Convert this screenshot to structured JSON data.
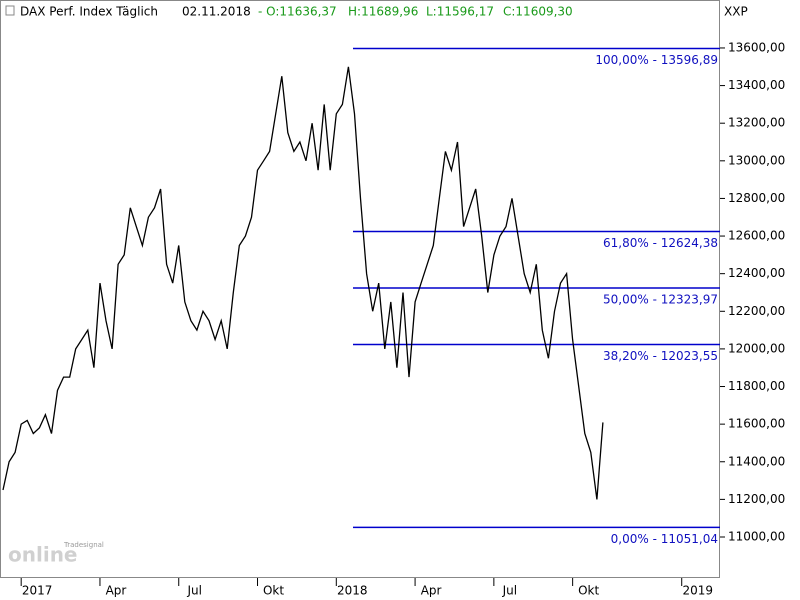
{
  "chart_data": {
    "type": "line",
    "title": "DAX Perf. Index Täglich",
    "date": "02.11.2018",
    "ohlc": [
      "- O:11636,37",
      "H:11689,96",
      "L:11596,17",
      "C:11609,30"
    ],
    "axis_label": "XXP",
    "logo": {
      "brand": "Tradesignal",
      "name": "online"
    },
    "categories": [
      null,
      null,
      null,
      "2017",
      null,
      null,
      null,
      null,
      null,
      null,
      null,
      null,
      null,
      null,
      null,
      null,
      "Apr",
      null,
      null,
      null,
      null,
      null,
      null,
      null,
      null,
      null,
      null,
      null,
      null,
      "Jul",
      null,
      null,
      null,
      null,
      null,
      null,
      null,
      null,
      null,
      null,
      null,
      null,
      "Okt",
      null,
      null,
      null,
      null,
      null,
      null,
      null,
      null,
      null,
      null,
      null,
      null,
      "2018",
      null,
      null,
      null,
      null,
      null,
      null,
      null,
      null,
      null,
      null,
      null,
      null,
      "Apr",
      null,
      null,
      null,
      null,
      null,
      null,
      null,
      null,
      null,
      null,
      null,
      null,
      "Jul",
      null,
      null,
      null,
      null,
      null,
      null,
      null,
      null,
      null,
      null,
      null,
      null,
      "Okt",
      null,
      null,
      null,
      null,
      null,
      null,
      null,
      null,
      null,
      null,
      null,
      null,
      null,
      null,
      null,
      null,
      null,
      "2019"
    ],
    "series": [
      {
        "name": "DAX",
        "color": "#000000",
        "values": [
          11250,
          11400,
          11450,
          11600,
          11620,
          11550,
          11580,
          11650,
          11550,
          11780,
          11850,
          11850,
          12000,
          12050,
          12100,
          11900,
          12350,
          12150,
          12000,
          12450,
          12500,
          12750,
          12650,
          12550,
          12700,
          12750,
          12850,
          12450,
          12350,
          12550,
          12250,
          12150,
          12100,
          12200,
          12150,
          12050,
          12150,
          12000,
          12300,
          12550,
          12600,
          12700,
          12950,
          13000,
          13050,
          13250,
          13450,
          13150,
          13050,
          13100,
          13000,
          13200,
          12950,
          13300,
          12950,
          13250,
          13300,
          13500,
          13250,
          12800,
          12400,
          12200,
          12350,
          12000,
          12250,
          11900,
          12300,
          11850,
          12250,
          12350,
          12450,
          12550,
          12800,
          13050,
          12950,
          13100,
          12650,
          12750,
          12850,
          12600,
          12300,
          12500,
          12600,
          12650,
          12800,
          12600,
          12400,
          12300,
          12450,
          12100,
          11950,
          12200,
          12350,
          12400,
          12050,
          11800,
          11550,
          11450,
          11200,
          11609.3,
          null,
          null,
          null,
          null,
          null,
          null,
          null,
          null,
          null,
          null,
          null,
          null,
          null
        ]
      }
    ],
    "ylim": [
      10782,
      13855
    ],
    "yticks": [
      {
        "value": 11000,
        "label": "11000,00"
      },
      {
        "value": 11200,
        "label": "11200,00"
      },
      {
        "value": 11400,
        "label": "11400,00"
      },
      {
        "value": 11600,
        "label": "11600,00"
      },
      {
        "value": 11800,
        "label": "11800,00"
      },
      {
        "value": 12000,
        "label": "12000,00"
      },
      {
        "value": 12200,
        "label": "12200,00"
      },
      {
        "value": 12400,
        "label": "12400,00"
      },
      {
        "value": 12600,
        "label": "12600,00"
      },
      {
        "value": 12800,
        "label": "12800,00"
      },
      {
        "value": 13000,
        "label": "13000,00"
      },
      {
        "value": 13200,
        "label": "13200,00"
      },
      {
        "value": 13400,
        "label": "13400,00"
      },
      {
        "value": 13600,
        "label": "13600,00"
      }
    ],
    "fib_color": "#0000cc",
    "fib_levels": [
      {
        "value": 13596.89,
        "label": "100,00% - 13596,89"
      },
      {
        "value": 12624.38,
        "label": "61,80% - 12624,38"
      },
      {
        "value": 12323.97,
        "label": "50,00% - 12323,97"
      },
      {
        "value": 12023.55,
        "label": "38,20% - 12023,55"
      },
      {
        "value": 11051.04,
        "label": "0,00% - 11051,04"
      }
    ]
  }
}
